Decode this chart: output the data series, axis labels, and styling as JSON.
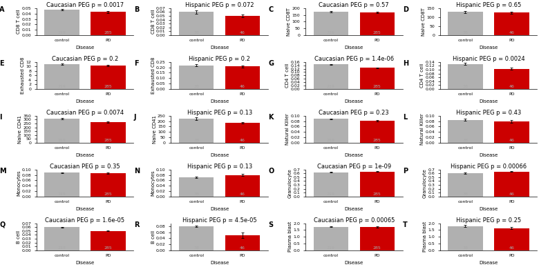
{
  "subplots": [
    {
      "label": "A",
      "title": "Caucasian PEG p = 0.0017",
      "ylabel": "CD8 T cell",
      "ylim": [
        0,
        0.05
      ],
      "yticks": [
        0.0,
        0.01,
        0.02,
        0.03,
        0.04,
        0.05
      ],
      "control_val": 0.047,
      "pd_val": 0.043,
      "control_err": 0.0015,
      "pd_err": 0.0015,
      "control_n": 219,
      "pd_n": 285
    },
    {
      "label": "B",
      "title": "Hispanic PEG p = 0.072",
      "ylabel": "CD8 T cell",
      "ylim": [
        0,
        0.07
      ],
      "yticks": [
        0.0,
        0.01,
        0.02,
        0.03,
        0.04,
        0.05,
        0.06,
        0.07
      ],
      "control_val": 0.06,
      "pd_val": 0.05,
      "control_err": 0.004,
      "pd_err": 0.003,
      "control_n": 38,
      "pd_n": 46
    },
    {
      "label": "C",
      "title": "Caucasian PEG p = 0.57",
      "ylabel": "Naive CD8T",
      "ylim": [
        0,
        200
      ],
      "yticks": [
        0,
        50,
        100,
        150,
        200
      ],
      "control_val": 175,
      "pd_val": 170,
      "control_err": 4,
      "pd_err": 4,
      "control_n": 219,
      "pd_n": 285
    },
    {
      "label": "D",
      "title": "Hispanic PEG p = 0.65",
      "ylabel": "Naive CD8T",
      "ylim": [
        0,
        150
      ],
      "yticks": [
        0,
        50,
        100,
        150
      ],
      "control_val": 130,
      "pd_val": 125,
      "control_err": 6,
      "pd_err": 6,
      "control_n": 38,
      "pd_n": 46
    },
    {
      "label": "E",
      "title": "Caucasian PEG p = 0.2",
      "ylabel": "Exhausted CD8",
      "ylim": [
        0,
        12
      ],
      "yticks": [
        0,
        2,
        4,
        6,
        8,
        10,
        12
      ],
      "control_val": 11.0,
      "pd_val": 10.5,
      "control_err": 0.3,
      "pd_err": 0.3,
      "control_n": 219,
      "pd_n": 285
    },
    {
      "label": "F",
      "title": "Hispanic PEG p = 0.2",
      "ylabel": "Exhausted CD8",
      "ylim": [
        0,
        0.25
      ],
      "yticks": [
        0.0,
        0.05,
        0.1,
        0.15,
        0.2,
        0.25
      ],
      "control_val": 0.22,
      "pd_val": 0.21,
      "control_err": 0.01,
      "pd_err": 0.01,
      "control_n": 38,
      "pd_n": 46
    },
    {
      "label": "G",
      "title": "Caucasian PEG p = 1.4e-06",
      "ylabel": "CD4 T cell",
      "ylim": [
        0,
        0.16
      ],
      "yticks": [
        0.0,
        0.02,
        0.04,
        0.06,
        0.08,
        0.1,
        0.12,
        0.14,
        0.16
      ],
      "control_val": 0.145,
      "pd_val": 0.125,
      "control_err": 0.002,
      "pd_err": 0.002,
      "control_n": 219,
      "pd_n": 285
    },
    {
      "label": "H",
      "title": "Hispanic PEG p = 0.0024",
      "ylabel": "CD4 T cell",
      "ylim": [
        0,
        0.14
      ],
      "yticks": [
        0.0,
        0.02,
        0.04,
        0.06,
        0.08,
        0.1,
        0.12,
        0.14
      ],
      "control_val": 0.13,
      "pd_val": 0.105,
      "control_err": 0.004,
      "pd_err": 0.006,
      "control_n": 38,
      "pd_n": 46
    },
    {
      "label": "I",
      "title": "Caucasian PEG p = 0.0074",
      "ylabel": "Naive CD41",
      "ylim": [
        0,
        350
      ],
      "yticks": [
        0,
        50,
        100,
        150,
        200,
        250,
        300,
        350
      ],
      "control_val": 310,
      "pd_val": 268,
      "control_err": 8,
      "pd_err": 6,
      "control_n": 219,
      "pd_n": 285
    },
    {
      "label": "J",
      "title": "Hispanic PEG p = 0.13",
      "ylabel": "Naive CD41",
      "ylim": [
        0,
        250
      ],
      "yticks": [
        0,
        50,
        100,
        150,
        200,
        250
      ],
      "control_val": 225,
      "pd_val": 183,
      "control_err": 12,
      "pd_err": 7,
      "control_n": 38,
      "pd_n": 46
    },
    {
      "label": "K",
      "title": "Caucasian PEG p = 0.23",
      "ylabel": "Natural Killer",
      "ylim": [
        0,
        0.1
      ],
      "yticks": [
        0.0,
        0.02,
        0.04,
        0.06,
        0.08,
        0.1
      ],
      "control_val": 0.088,
      "pd_val": 0.082,
      "control_err": 0.002,
      "pd_err": 0.002,
      "control_n": 219,
      "pd_n": 285
    },
    {
      "label": "L",
      "title": "Hispanic PEG p = 0.43",
      "ylabel": "Natural Killer",
      "ylim": [
        0,
        0.1
      ],
      "yticks": [
        0.0,
        0.02,
        0.04,
        0.06,
        0.08,
        0.1
      ],
      "control_val": 0.085,
      "pd_val": 0.08,
      "control_err": 0.004,
      "pd_err": 0.005,
      "control_n": 38,
      "pd_n": 46
    },
    {
      "label": "M",
      "title": "Caucasian PEG p = 0.35",
      "ylabel": "Monocytes",
      "ylim": [
        0,
        0.1
      ],
      "yticks": [
        0.0,
        0.02,
        0.04,
        0.06,
        0.08,
        0.1
      ],
      "control_val": 0.088,
      "pd_val": 0.087,
      "control_err": 0.002,
      "pd_err": 0.002,
      "control_n": 219,
      "pd_n": 285
    },
    {
      "label": "N",
      "title": "Hispanic PEG p = 0.13",
      "ylabel": "Monocytes",
      "ylim": [
        0,
        0.1
      ],
      "yticks": [
        0.0,
        0.02,
        0.04,
        0.06,
        0.08,
        0.1
      ],
      "control_val": 0.072,
      "pd_val": 0.08,
      "control_err": 0.003,
      "pd_err": 0.003,
      "control_n": 38,
      "pd_n": 46
    },
    {
      "label": "O",
      "title": "Caucasian PEG p = 1e-09",
      "ylabel": "Granulocyte",
      "ylim": [
        0,
        0.7
      ],
      "yticks": [
        0.0,
        0.1,
        0.2,
        0.3,
        0.4,
        0.5,
        0.6,
        0.7
      ],
      "control_val": 0.63,
      "pd_val": 0.65,
      "control_err": 0.008,
      "pd_err": 0.008,
      "control_n": 219,
      "pd_n": 285
    },
    {
      "label": "P",
      "title": "Hispanic PEG p = 0.00066",
      "ylabel": "Granulocyte",
      "ylim": [
        0,
        0.7
      ],
      "yticks": [
        0.0,
        0.1,
        0.2,
        0.3,
        0.4,
        0.5,
        0.6,
        0.7
      ],
      "control_val": 0.6,
      "pd_val": 0.65,
      "control_err": 0.015,
      "pd_err": 0.012,
      "control_n": 38,
      "pd_n": 46
    },
    {
      "label": "Q",
      "title": "Caucasian PEG p = 1.6e-05",
      "ylabel": "B cell",
      "ylim": [
        0,
        0.07
      ],
      "yticks": [
        0.0,
        0.01,
        0.02,
        0.03,
        0.04,
        0.05,
        0.06,
        0.07
      ],
      "control_val": 0.06,
      "pd_val": 0.05,
      "control_err": 0.001,
      "pd_err": 0.001,
      "control_n": 219,
      "pd_n": 285
    },
    {
      "label": "R",
      "title": "Hispanic PEG p = 4.5e-05",
      "ylabel": "B cell",
      "ylim": [
        0,
        0.09
      ],
      "yticks": [
        0.0,
        0.02,
        0.04,
        0.06,
        0.08
      ],
      "control_val": 0.08,
      "pd_val": 0.05,
      "control_err": 0.003,
      "pd_err": 0.01,
      "control_n": 38,
      "pd_n": 46
    },
    {
      "label": "S",
      "title": "Caucasian PEG p = 0.00065",
      "ylabel": "Plasma blast",
      "ylim": [
        0,
        2.0
      ],
      "yticks": [
        0.0,
        0.5,
        1.0,
        1.5,
        2.0
      ],
      "control_val": 1.75,
      "pd_val": 1.72,
      "control_err": 0.04,
      "pd_err": 0.04,
      "control_n": 219,
      "pd_n": 285
    },
    {
      "label": "T",
      "title": "Hispanic PEG p = 0.25",
      "ylabel": "Plasma blast",
      "ylim": [
        0,
        2.0
      ],
      "yticks": [
        0.0,
        0.5,
        1.0,
        1.5,
        2.0
      ],
      "control_val": 1.8,
      "pd_val": 1.65,
      "control_err": 0.06,
      "pd_err": 0.06,
      "control_n": 38,
      "pd_n": 46
    }
  ],
  "control_color": "#b0b0b0",
  "pd_color": "#cc0000",
  "n_label_color": "#aaaaaa",
  "n_label_fontsize": 4.5,
  "title_fontsize": 6.0,
  "ylabel_fontsize": 5.0,
  "tick_fontsize": 4.5,
  "label_fontsize": 7,
  "bar_width": 0.75
}
